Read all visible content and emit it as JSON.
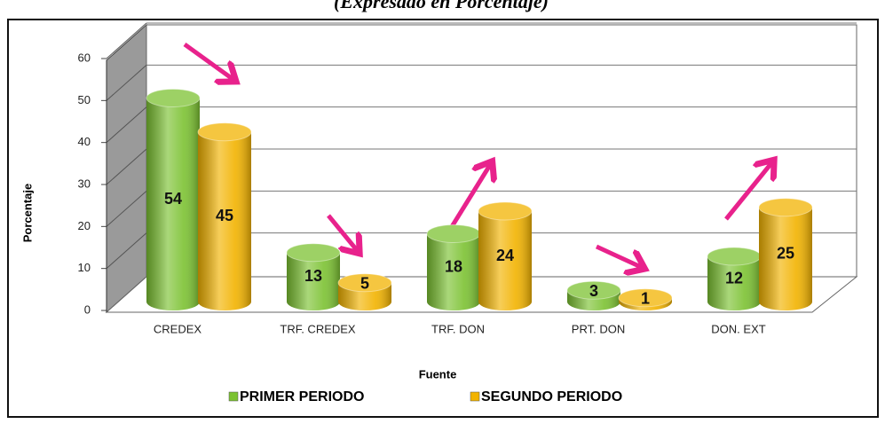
{
  "chart_data": {
    "type": "bar3d",
    "title": "(Expresado en Porcentaje)",
    "x_label": "Fuente",
    "y_label": "Porcentaje",
    "categories": [
      "CREDEX",
      "TRF. CREDEX",
      "TRF. DON",
      "PRT. DON",
      "DON. EXT"
    ],
    "series": [
      {
        "name": "PRIMER PERIODO",
        "color": "#7cc232",
        "values": [
          54,
          13,
          18,
          3,
          12
        ]
      },
      {
        "name": "SEGUNDO PERIODO",
        "color": "#f2b300",
        "values": [
          45,
          5,
          24,
          1,
          25
        ]
      }
    ],
    "ylim": [
      0,
      60
    ],
    "yticks": [
      0,
      10,
      20,
      30,
      40,
      50,
      60
    ],
    "grid": true,
    "legend": "bottom"
  }
}
